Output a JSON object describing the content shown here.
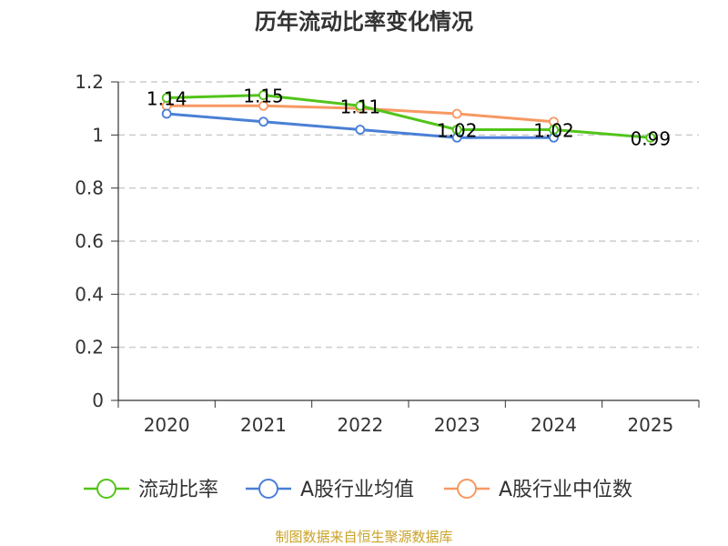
{
  "chart_data": {
    "type": "line",
    "title": "历年流动比率变化情况",
    "categories": [
      "2020",
      "2021",
      "2022",
      "2023",
      "2024",
      "2025"
    ],
    "ylim": [
      0,
      1.2
    ],
    "y_ticks": [
      "0",
      "0.2",
      "0.4",
      "0.6",
      "0.8",
      "1",
      "1.2"
    ],
    "grid": true,
    "legend_position": "bottom",
    "series": [
      {
        "name": "流动比率",
        "color": "#52c41a",
        "values": [
          1.14,
          1.15,
          1.11,
          1.02,
          1.02,
          0.99
        ],
        "data_labels": [
          "1.14",
          "1.15",
          "1.11",
          "1.02",
          "1.02",
          "0.99"
        ]
      },
      {
        "name": "A股行业均值",
        "color": "#4a7fd6",
        "values": [
          1.08,
          1.05,
          1.02,
          0.99,
          0.99,
          null
        ]
      },
      {
        "name": "A股行业中位数",
        "color": "#f79862",
        "values": [
          1.11,
          1.11,
          1.1,
          1.08,
          1.05,
          null
        ]
      }
    ]
  },
  "source": {
    "text": "制图数据来自恒生聚源数据库",
    "color": "#c9a227"
  }
}
